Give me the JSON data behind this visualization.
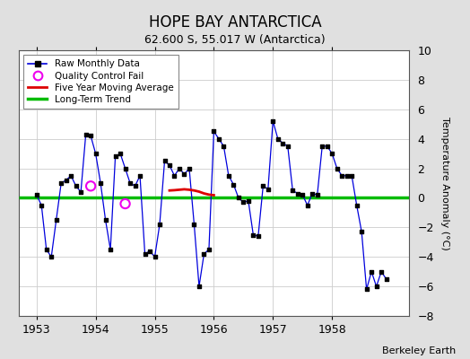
{
  "title": "HOPE BAY ANTARCTICA",
  "subtitle": "62.600 S, 55.017 W (Antarctica)",
  "ylabel": "Temperature Anomaly (°C)",
  "credit": "Berkeley Earth",
  "ylim": [
    -8,
    10
  ],
  "yticks": [
    -8,
    -6,
    -4,
    -2,
    0,
    2,
    4,
    6,
    8,
    10
  ],
  "fig_bg_color": "#e0e0e0",
  "plot_bg_color": "#ffffff",
  "raw_months": [
    1953.0,
    1953.0833,
    1953.1667,
    1953.25,
    1953.3333,
    1953.4167,
    1953.5,
    1953.5833,
    1953.6667,
    1953.75,
    1953.8333,
    1953.9167,
    1954.0,
    1954.0833,
    1954.1667,
    1954.25,
    1954.3333,
    1954.4167,
    1954.5,
    1954.5833,
    1954.6667,
    1954.75,
    1954.8333,
    1954.9167,
    1955.0,
    1955.0833,
    1955.1667,
    1955.25,
    1955.3333,
    1955.4167,
    1955.5,
    1955.5833,
    1955.6667,
    1955.75,
    1955.8333,
    1955.9167,
    1956.0,
    1956.0833,
    1956.1667,
    1956.25,
    1956.3333,
    1956.4167,
    1956.5,
    1956.5833,
    1956.6667,
    1956.75,
    1956.8333,
    1956.9167,
    1957.0,
    1957.0833,
    1957.1667,
    1957.25,
    1957.3333,
    1957.4167,
    1957.5,
    1957.5833,
    1957.6667,
    1957.75,
    1957.8333,
    1957.9167,
    1958.0,
    1958.0833,
    1958.1667,
    1958.25,
    1958.3333,
    1958.4167,
    1958.5,
    1958.5833,
    1958.6667,
    1958.75,
    1958.8333,
    1958.9167
  ],
  "raw_values": [
    0.2,
    -0.5,
    -3.5,
    -4.0,
    -1.5,
    1.0,
    1.2,
    1.5,
    0.8,
    0.4,
    4.3,
    4.2,
    3.0,
    1.0,
    -1.5,
    -3.5,
    2.8,
    3.0,
    2.0,
    1.0,
    0.8,
    1.5,
    -3.8,
    -3.6,
    -4.0,
    -1.8,
    2.5,
    2.2,
    1.5,
    2.0,
    1.6,
    2.0,
    -1.8,
    -6.0,
    -3.8,
    -3.5,
    4.5,
    4.0,
    3.5,
    1.5,
    0.9,
    0.0,
    -0.3,
    -0.2,
    -2.5,
    -2.6,
    0.8,
    0.6,
    5.2,
    4.0,
    3.7,
    3.5,
    0.5,
    0.3,
    0.2,
    -0.5,
    0.3,
    0.2,
    3.5,
    3.5,
    3.0,
    2.0,
    1.5,
    1.5,
    1.5,
    -0.5,
    -2.3,
    -6.2,
    -5.0,
    -6.0,
    -5.0,
    -5.5
  ],
  "qc_fail_months": [
    1953.9167,
    1954.5
  ],
  "qc_fail_values": [
    0.8,
    -0.4
  ],
  "moving_avg_months": [
    1955.25,
    1955.3333,
    1955.4167,
    1955.5,
    1955.5833,
    1955.6667,
    1955.75,
    1955.8333,
    1955.9167,
    1956.0
  ],
  "moving_avg_values": [
    0.5,
    0.52,
    0.55,
    0.58,
    0.55,
    0.5,
    0.42,
    0.3,
    0.22,
    0.18
  ],
  "trend_x": [
    1952.7,
    1959.3
  ],
  "trend_y": [
    0.0,
    0.0
  ],
  "line_color": "#0000dd",
  "marker_color": "#000000",
  "qc_color": "#ee00ee",
  "moving_avg_color": "#dd0000",
  "trend_color": "#00bb00",
  "xlim": [
    1952.7,
    1959.3
  ],
  "xtick_years": [
    1953,
    1954,
    1955,
    1956,
    1957,
    1958
  ],
  "grid_color": "#cccccc",
  "title_fontsize": 12,
  "subtitle_fontsize": 9,
  "tick_fontsize": 9,
  "ylabel_fontsize": 8,
  "legend_fontsize": 7.5,
  "credit_fontsize": 8
}
